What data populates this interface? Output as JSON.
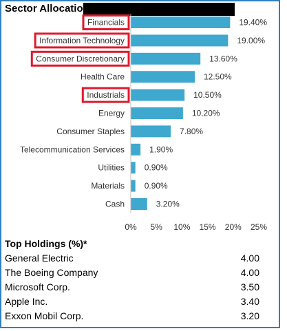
{
  "sector_allocation": {
    "title": "Sector Allocation"
  },
  "chart_data": {
    "type": "bar",
    "orientation": "horizontal",
    "title": "Sector Allocation",
    "categories": [
      "Financials",
      "Information Technology",
      "Consumer Discretionary",
      "Health Care",
      "Industrials",
      "Energy",
      "Consumer Staples",
      "Telecommunication Services",
      "Utilities",
      "Materials",
      "Cash"
    ],
    "values": [
      19.4,
      19.0,
      13.6,
      12.5,
      10.5,
      10.2,
      7.8,
      1.9,
      0.9,
      0.9,
      3.2
    ],
    "value_labels": [
      "19.40%",
      "19.00%",
      "13.60%",
      "12.50%",
      "10.50%",
      "10.20%",
      "7.80%",
      "1.90%",
      "0.90%",
      "0.90%",
      "3.20%"
    ],
    "xlim": [
      0,
      25
    ],
    "xticks": [
      0,
      5,
      10,
      15,
      20,
      25
    ],
    "xtick_labels": [
      "0%",
      "5%",
      "10%",
      "15%",
      "20%",
      "25%"
    ],
    "highlighted": [
      "Financials",
      "Information Technology",
      "Consumer Discretionary",
      "Industrials"
    ],
    "grid": false,
    "legend": "none",
    "bar_color": "#3fa8cf",
    "highlight_color": "#e0192d"
  },
  "top_holdings": {
    "title": "Top Holdings (%)*",
    "rows": [
      {
        "name": "General Electric",
        "value": "4.00"
      },
      {
        "name": "The Boeing Company",
        "value": "4.00"
      },
      {
        "name": "Microsoft Corp.",
        "value": "3.50"
      },
      {
        "name": "Apple Inc.",
        "value": "3.40"
      },
      {
        "name": "Exxon Mobil Corp.",
        "value": "3.20"
      }
    ]
  }
}
